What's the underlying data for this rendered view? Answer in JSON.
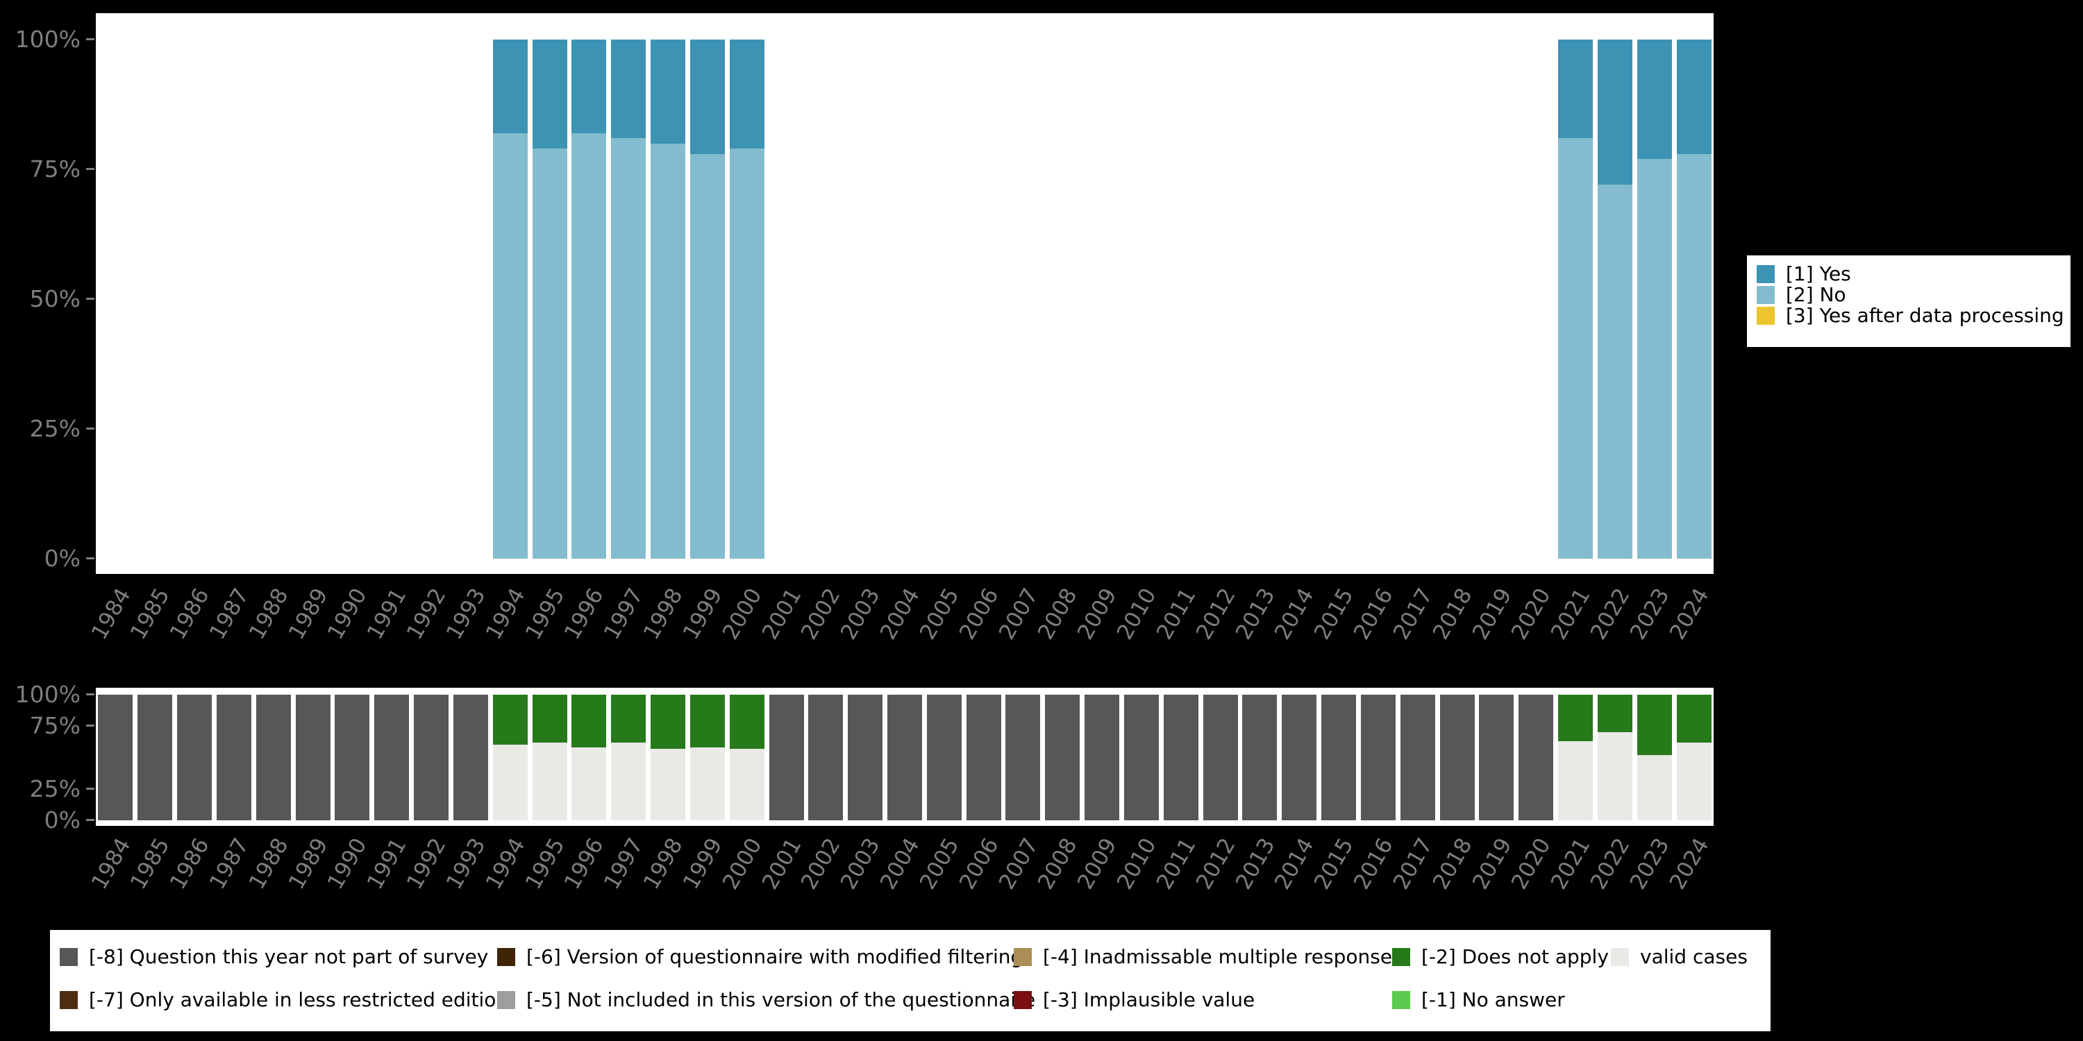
{
  "colors": {
    "background": "#000000",
    "plot_background": "#ffffff",
    "axis_text": "#7e7e7e",
    "legend_text": "#000000"
  },
  "chart_data": [
    {
      "id": "answers-by-year",
      "type": "bar",
      "stacked": true,
      "ylim": [
        0,
        100
      ],
      "grid": false,
      "legend_position": "right",
      "ylabels": [
        {
          "text": "100%",
          "pct": 100
        },
        {
          "text": "75%",
          "pct": 75
        },
        {
          "text": "50%",
          "pct": 50
        },
        {
          "text": "25%",
          "pct": 25
        },
        {
          "text": "0%",
          "pct": 0
        }
      ],
      "categories": [
        "1984",
        "1985",
        "1986",
        "1987",
        "1988",
        "1989",
        "1990",
        "1991",
        "1992",
        "1993",
        "1994",
        "1995",
        "1996",
        "1997",
        "1998",
        "1999",
        "2000",
        "2001",
        "2002",
        "2003",
        "2004",
        "2005",
        "2006",
        "2007",
        "2008",
        "2009",
        "2010",
        "2011",
        "2012",
        "2013",
        "2014",
        "2015",
        "2016",
        "2017",
        "2018",
        "2019",
        "2020",
        "2021",
        "2022",
        "2023",
        "2024"
      ],
      "series": [
        {
          "name": "[1] Yes",
          "color": "#3c93b4",
          "values": [
            0,
            0,
            0,
            0,
            0,
            0,
            0,
            0,
            0,
            0,
            18,
            21,
            18,
            19,
            20,
            22,
            21,
            0,
            0,
            0,
            0,
            0,
            0,
            0,
            0,
            0,
            0,
            0,
            0,
            0,
            0,
            0,
            0,
            0,
            0,
            0,
            0,
            19,
            28,
            23,
            22
          ]
        },
        {
          "name": "[2] No",
          "color": "#84bccf",
          "values": [
            0,
            0,
            0,
            0,
            0,
            0,
            0,
            0,
            0,
            0,
            82,
            79,
            82,
            81,
            80,
            78,
            79,
            0,
            0,
            0,
            0,
            0,
            0,
            0,
            0,
            0,
            0,
            0,
            0,
            0,
            0,
            0,
            0,
            0,
            0,
            0,
            0,
            81,
            72,
            77,
            78
          ]
        },
        {
          "name": "[3] Yes after data processing",
          "color": "#ecc52e",
          "values": [
            0,
            0,
            0,
            0,
            0,
            0,
            0,
            0,
            0,
            0,
            0,
            0,
            0,
            0,
            0,
            0,
            0,
            0,
            0,
            0,
            0,
            0,
            0,
            0,
            0,
            0,
            0,
            0,
            0,
            0,
            0,
            0,
            0,
            0,
            0,
            0,
            0,
            0,
            0,
            0,
            0
          ]
        }
      ]
    },
    {
      "id": "missing-values-by-year",
      "type": "bar",
      "stacked": true,
      "ylim": [
        0,
        100
      ],
      "grid": false,
      "legend_position": "bottom",
      "ylabels": [
        {
          "text": "100%",
          "pct": 100
        },
        {
          "text": "75%",
          "pct": 75
        },
        {
          "text": "25%",
          "pct": 25
        },
        {
          "text": "0%",
          "pct": 0
        }
      ],
      "categories": [
        "1984",
        "1985",
        "1986",
        "1987",
        "1988",
        "1989",
        "1990",
        "1991",
        "1992",
        "1993",
        "1994",
        "1995",
        "1996",
        "1997",
        "1998",
        "1999",
        "2000",
        "2001",
        "2002",
        "2003",
        "2004",
        "2005",
        "2006",
        "2007",
        "2008",
        "2009",
        "2010",
        "2011",
        "2012",
        "2013",
        "2014",
        "2015",
        "2016",
        "2017",
        "2018",
        "2019",
        "2020",
        "2021",
        "2022",
        "2023",
        "2024"
      ],
      "series": [
        {
          "name": "[-8] Question this year not part of survey",
          "color": "#575757",
          "values": [
            100,
            100,
            100,
            100,
            100,
            100,
            100,
            100,
            100,
            100,
            0,
            0,
            0,
            0,
            0,
            0,
            0,
            100,
            100,
            100,
            100,
            100,
            100,
            100,
            100,
            100,
            100,
            100,
            100,
            100,
            100,
            100,
            100,
            100,
            100,
            100,
            100,
            0,
            0,
            0,
            0
          ]
        },
        {
          "name": "[-7] Only available in less restricted edition",
          "color": "#4f2d11",
          "values": [
            0,
            0,
            0,
            0,
            0,
            0,
            0,
            0,
            0,
            0,
            0,
            0,
            0,
            0,
            0,
            0,
            0,
            0,
            0,
            0,
            0,
            0,
            0,
            0,
            0,
            0,
            0,
            0,
            0,
            0,
            0,
            0,
            0,
            0,
            0,
            0,
            0,
            0,
            0,
            0,
            0
          ]
        },
        {
          "name": "[-6] Version of questionnaire with modified filtering",
          "color": "#3f2504",
          "values": [
            0,
            0,
            0,
            0,
            0,
            0,
            0,
            0,
            0,
            0,
            0,
            0,
            0,
            0,
            0,
            0,
            0,
            0,
            0,
            0,
            0,
            0,
            0,
            0,
            0,
            0,
            0,
            0,
            0,
            0,
            0,
            0,
            0,
            0,
            0,
            0,
            0,
            0,
            0,
            0,
            0
          ]
        },
        {
          "name": "[-5] Not included in this version of the questionnaire",
          "color": "#9e9e9e",
          "values": [
            0,
            0,
            0,
            0,
            0,
            0,
            0,
            0,
            0,
            0,
            0,
            0,
            0,
            0,
            0,
            0,
            0,
            0,
            0,
            0,
            0,
            0,
            0,
            0,
            0,
            0,
            0,
            0,
            0,
            0,
            0,
            0,
            0,
            0,
            0,
            0,
            0,
            0,
            0,
            0,
            0
          ]
        },
        {
          "name": "[-4] Inadmissable multiple response",
          "color": "#ab8d55",
          "values": [
            0,
            0,
            0,
            0,
            0,
            0,
            0,
            0,
            0,
            0,
            0,
            0,
            0,
            0,
            0,
            0,
            0,
            0,
            0,
            0,
            0,
            0,
            0,
            0,
            0,
            0,
            0,
            0,
            0,
            0,
            0,
            0,
            0,
            0,
            0,
            0,
            0,
            0,
            0,
            0,
            0
          ]
        },
        {
          "name": "[-3] Implausible value",
          "color": "#7c0f0f",
          "values": [
            0,
            0,
            0,
            0,
            0,
            0,
            0,
            0,
            0,
            0,
            0,
            0,
            0,
            0,
            0,
            0,
            0,
            0,
            0,
            0,
            0,
            0,
            0,
            0,
            0,
            0,
            0,
            0,
            0,
            0,
            0,
            0,
            0,
            0,
            0,
            0,
            0,
            0,
            0,
            0,
            0
          ]
        },
        {
          "name": "[-2] Does not apply",
          "color": "#267a1a",
          "values": [
            0,
            0,
            0,
            0,
            0,
            0,
            0,
            0,
            0,
            0,
            40,
            38,
            42,
            38,
            43,
            42,
            43,
            0,
            0,
            0,
            0,
            0,
            0,
            0,
            0,
            0,
            0,
            0,
            0,
            0,
            0,
            0,
            0,
            0,
            0,
            0,
            0,
            37,
            30,
            48,
            38
          ]
        },
        {
          "name": "[-1] No answer",
          "color": "#5bc84e",
          "values": [
            0,
            0,
            0,
            0,
            0,
            0,
            0,
            0,
            0,
            0,
            0,
            0,
            0,
            0,
            0,
            0,
            0,
            0,
            0,
            0,
            0,
            0,
            0,
            0,
            0,
            0,
            0,
            0,
            0,
            0,
            0,
            0,
            0,
            0,
            0,
            0,
            0,
            0,
            0,
            0,
            0
          ]
        },
        {
          "name": "valid cases",
          "color": "#e9e9e6",
          "values": [
            0,
            0,
            0,
            0,
            0,
            0,
            0,
            0,
            0,
            0,
            60,
            62,
            58,
            62,
            57,
            58,
            57,
            0,
            0,
            0,
            0,
            0,
            0,
            0,
            0,
            0,
            0,
            0,
            0,
            0,
            0,
            0,
            0,
            0,
            0,
            0,
            0,
            63,
            70,
            52,
            62
          ]
        }
      ]
    }
  ],
  "legend_top": {
    "items": [
      {
        "label": "[1] Yes",
        "color": "#3c93b4"
      },
      {
        "label": "[2] No",
        "color": "#84bccf"
      },
      {
        "label": "[3] Yes after data processing",
        "color": "#ecc52e"
      }
    ]
  },
  "legend_bottom": {
    "rows": [
      [
        {
          "label": "[-8] Question this year not part of survey",
          "color": "#575757"
        },
        {
          "label": "[-6] Version of questionnaire with modified filtering",
          "color": "#3f2504"
        },
        {
          "label": "[-4] Inadmissable multiple response",
          "color": "#ab8d55"
        },
        {
          "label": "[-2] Does not apply",
          "color": "#267a1a"
        },
        {
          "label": "valid cases",
          "color": "#e9e9e6"
        }
      ],
      [
        {
          "label": "[-7] Only available in less restricted edition",
          "color": "#4f2d11"
        },
        {
          "label": "[-5] Not included in this version of the questionnaire",
          "color": "#9e9e9e"
        },
        {
          "label": "[-3] Implausible value",
          "color": "#7c0f0f"
        },
        {
          "label": "[-1] No answer",
          "color": "#5bc84e"
        }
      ]
    ]
  }
}
